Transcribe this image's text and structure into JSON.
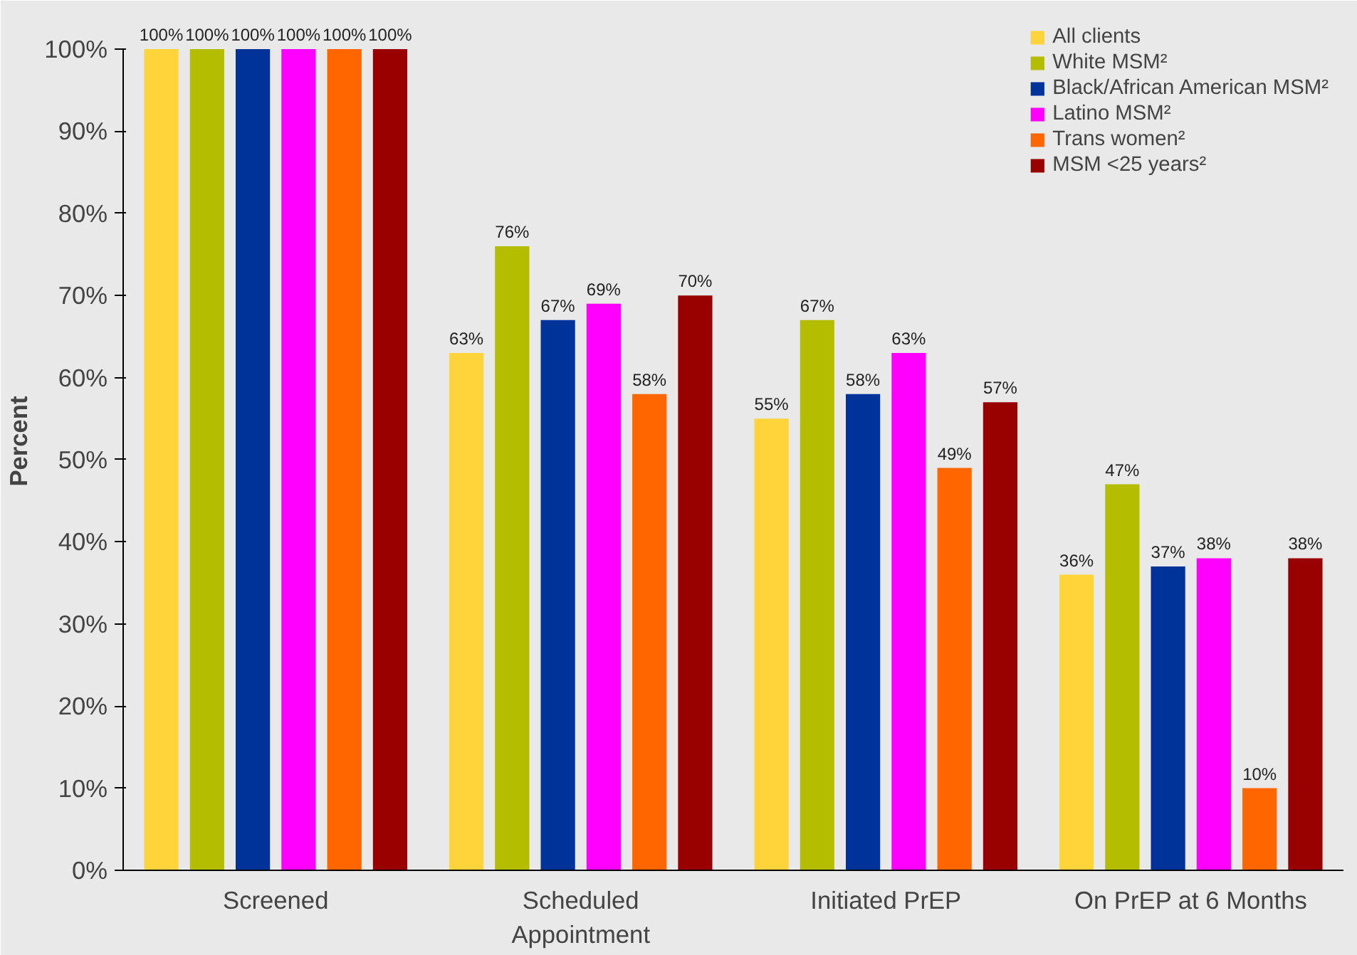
{
  "chart_data": {
    "type": "bar",
    "ylabel": "Percent",
    "categories": [
      "Screened",
      "Scheduled Appointment",
      "Initiated PrEP",
      "On PrEP at 6 Months"
    ],
    "series": [
      {
        "name": "All clients",
        "color": "#ffd43b",
        "values": [
          100,
          63,
          55,
          36
        ],
        "value_labels": [
          "100%",
          "63%",
          "55%",
          "36%"
        ]
      },
      {
        "name": "White MSM²",
        "color": "#b5bd00",
        "values": [
          100,
          76,
          67,
          47
        ],
        "value_labels": [
          "100%",
          "76%",
          "67%",
          "47%"
        ]
      },
      {
        "name": "Black/African American MSM²",
        "color": "#003399",
        "values": [
          100,
          67,
          58,
          37
        ],
        "value_labels": [
          "100%",
          "67%",
          "58%",
          "37%"
        ]
      },
      {
        "name": "Latino MSM²",
        "color": "#ff00ff",
        "values": [
          100,
          69,
          63,
          38
        ],
        "value_labels": [
          "100%",
          "69%",
          "63%",
          "38%"
        ]
      },
      {
        "name": "Trans women²",
        "color": "#ff6600",
        "values": [
          100,
          58,
          49,
          10
        ],
        "value_labels": [
          "100%",
          "58%",
          "49%",
          "10%"
        ]
      },
      {
        "name": "MSM <25 years²",
        "color": "#990000",
        "values": [
          100,
          70,
          57,
          38
        ],
        "value_labels": [
          "100%",
          "70%",
          "57%",
          "38%"
        ]
      }
    ],
    "ylim": [
      0,
      100
    ],
    "yticks": [
      {
        "value": 0,
        "label": "0%"
      },
      {
        "value": 10,
        "label": "10%"
      },
      {
        "value": 20,
        "label": "20%"
      },
      {
        "value": 30,
        "label": "30%"
      },
      {
        "value": 40,
        "label": "40%"
      },
      {
        "value": 50,
        "label": "50%"
      },
      {
        "value": 60,
        "label": "60%"
      },
      {
        "value": 70,
        "label": "70%"
      },
      {
        "value": 80,
        "label": "80%"
      },
      {
        "value": 90,
        "label": "90%"
      },
      {
        "value": 100,
        "label": "100%"
      }
    ],
    "legend": "top right"
  }
}
